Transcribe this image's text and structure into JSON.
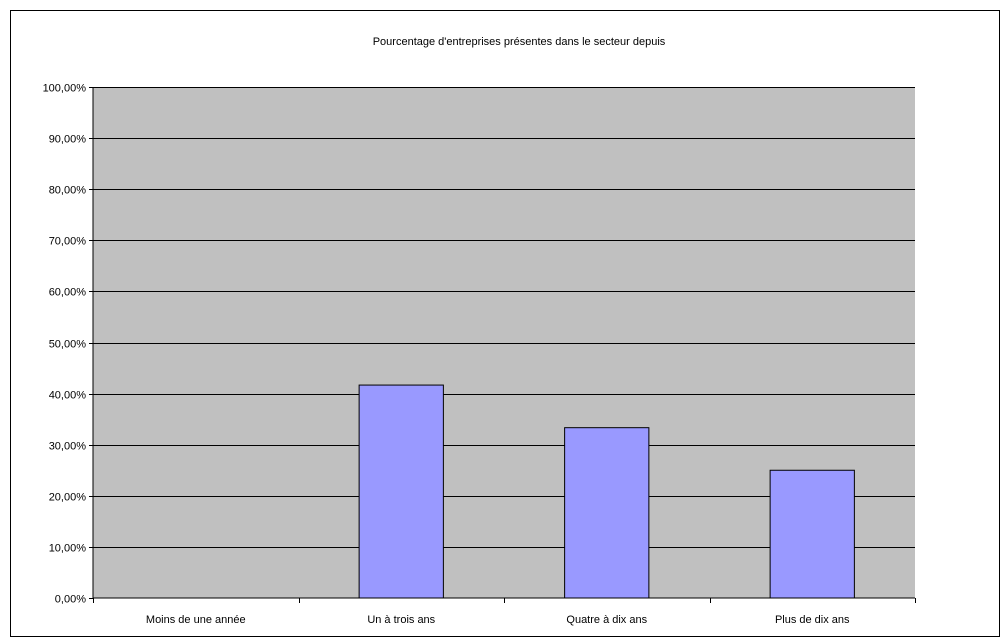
{
  "chart_data": {
    "type": "bar",
    "title": "Pourcentage d'entreprises présentes dans le secteur depuis",
    "xlabel": "",
    "ylabel": "",
    "categories": [
      "Moins de une année",
      "Un à trois ans",
      "Quatre à dix ans",
      "Plus de dix ans"
    ],
    "values": [
      0,
      41.67,
      33.33,
      25.0
    ],
    "ylim": [
      0,
      100
    ],
    "yticks": [
      0,
      10,
      20,
      30,
      40,
      50,
      60,
      70,
      80,
      90,
      100
    ],
    "ytick_labels": [
      "0,00%",
      "10,00%",
      "20,00%",
      "30,00%",
      "40,00%",
      "50,00%",
      "60,00%",
      "70,00%",
      "80,00%",
      "90,00%",
      "100,00%"
    ],
    "grid": true,
    "legend": "none",
    "colors": {
      "plot_background": "#c0c0c0",
      "bar_fill": "#9999ff",
      "bar_stroke": "#000000",
      "gridline": "#000000"
    }
  }
}
